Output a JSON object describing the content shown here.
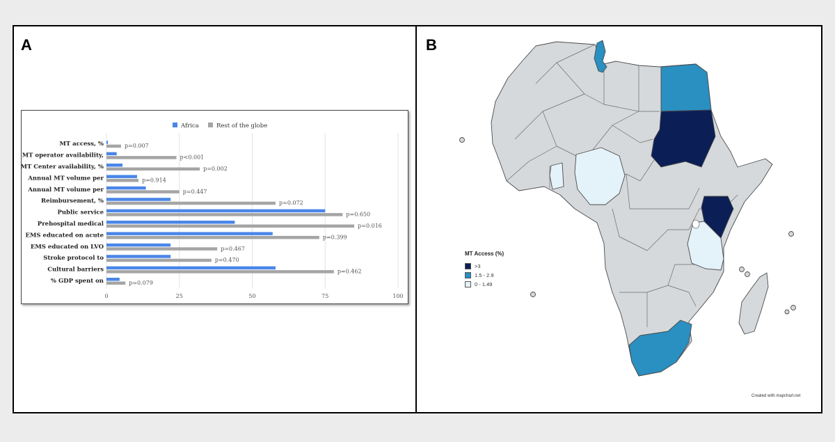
{
  "panels": {
    "a_label": "A",
    "b_label": "B"
  },
  "chart_data": {
    "type": "bar",
    "orientation": "horizontal",
    "categories": [
      "MT access, %",
      "MT operator availability,",
      "MT Center availability, %",
      "Annual MT volume per",
      "Annual MT volume per",
      "Reimbursement, %",
      "Public service",
      "Prehospital medical",
      "EMS educated on acute",
      "EMS educated on LVO",
      "Stroke protocol to",
      "Cultural barriers",
      "% GDP spent on"
    ],
    "series": [
      {
        "name": "Africa",
        "color": "#4a86e8",
        "values": [
          0.5,
          3.5,
          5.5,
          10.5,
          13.5,
          22,
          75,
          44,
          57,
          22,
          22,
          58,
          4.5
        ]
      },
      {
        "name": "Rest of the globe",
        "color": "#a5a5a5",
        "values": [
          5,
          24,
          32,
          11,
          25,
          58,
          81,
          85,
          73,
          38,
          36,
          78,
          6.5
        ]
      }
    ],
    "p_values": [
      "p=0.007",
      "p<0.001",
      "p=0.002",
      "p=0.914",
      "p=0.447",
      "p=0.072",
      "p=0.650",
      "p=0.016",
      "p=0.399",
      "p=0.467",
      "p=0.470",
      "p=0.462",
      "p=0.079"
    ],
    "xticks": [
      0,
      25,
      50,
      75,
      100
    ],
    "xlim": [
      0,
      100
    ],
    "legend_position": "top-center",
    "grid": true
  },
  "map": {
    "legend_title": "MT Access (%)",
    "legend_items": [
      {
        "label": ">3",
        "color": "#0b1f56"
      },
      {
        "label": "1.5 - 2.9",
        "color": "#2a8fc1"
      },
      {
        "label": "0 - 1.49",
        "color": "#e4f2fa"
      }
    ],
    "base_color": "#d5d9dc",
    "credit": "Created with mapchart.net"
  }
}
